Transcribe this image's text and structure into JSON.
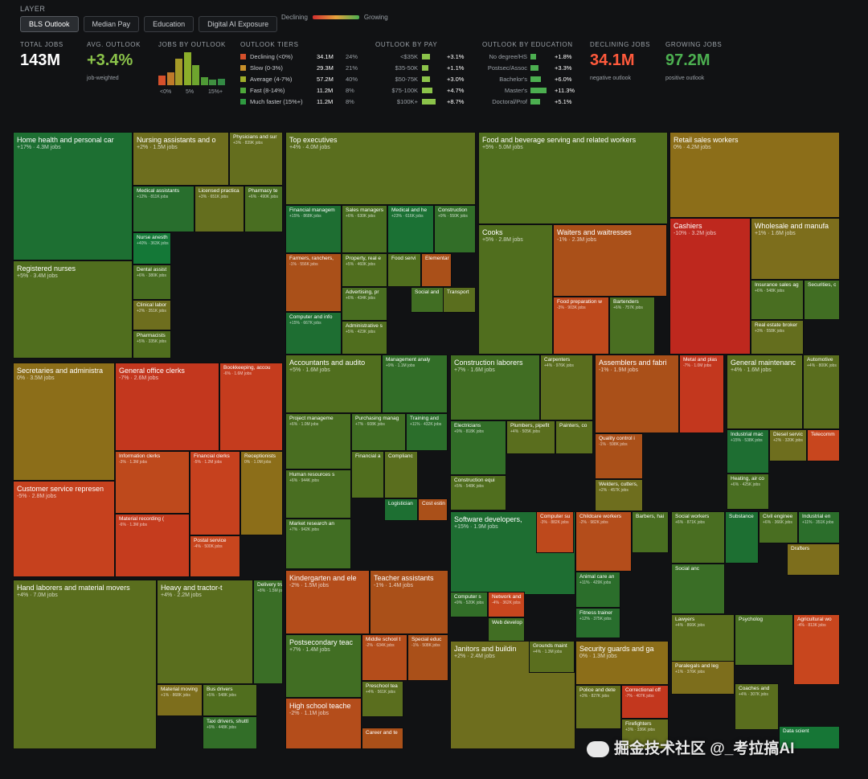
{
  "header": {
    "layer_label": "LAYER",
    "tabs": [
      "BLS Outlook",
      "Median Pay",
      "Education",
      "Digital AI Exposure"
    ],
    "active_tab": "BLS Outlook",
    "legend_declining": "Declining",
    "legend_growing": "Growing"
  },
  "stats": {
    "total_jobs_label": "TOTAL JOBS",
    "total_jobs": "143M",
    "avg_outlook_label": "AVG. OUTLOOK",
    "avg_outlook": "+3.4%",
    "avg_outlook_sub": "job-weighted",
    "jobs_by_outlook_label": "JOBS BY OUTLOOK",
    "histogram": [
      {
        "value": 0.28,
        "color": "#d5502b"
      },
      {
        "value": 0.36,
        "color": "#c07a2a"
      },
      {
        "value": 0.75,
        "color": "#a59a28"
      },
      {
        "value": 0.93,
        "color": "#8bae2a"
      },
      {
        "value": 0.56,
        "color": "#6ea52e"
      },
      {
        "value": 0.22,
        "color": "#4f9a36"
      },
      {
        "value": 0.16,
        "color": "#3f9040"
      },
      {
        "value": 0.18,
        "color": "#338a44"
      }
    ],
    "histogram_ticks": [
      "<0%",
      "5%",
      "15%+"
    ],
    "declining_jobs_label": "DECLINING JOBS",
    "declining_jobs": "34.1M",
    "declining_jobs_sub": "negative outlook",
    "growing_jobs_label": "GROWING JOBS",
    "growing_jobs": "97.2M",
    "growing_jobs_sub": "positive outlook"
  },
  "outlook_tiers": {
    "label": "OUTLOOK TIERS",
    "rows": [
      {
        "name": "Declining (<0%)",
        "jobs": "34.1M",
        "pct": "24%",
        "color": "#d5502b"
      },
      {
        "name": "Slow (0-3%)",
        "jobs": "29.3M",
        "pct": "21%",
        "color": "#c9902a"
      },
      {
        "name": "Average (4-7%)",
        "jobs": "57.2M",
        "pct": "40%",
        "color": "#9fae2a"
      },
      {
        "name": "Fast (8-14%)",
        "jobs": "11.2M",
        "pct": "8%",
        "color": "#4ea83a"
      },
      {
        "name": "Much faster (15%+)",
        "jobs": "11.2M",
        "pct": "8%",
        "color": "#2f9a40"
      }
    ]
  },
  "outlook_by_pay": {
    "label": "OUTLOOK BY PAY",
    "rows": [
      {
        "name": "<$35K",
        "value": "+3.1%",
        "bar": 0.55
      },
      {
        "name": "$35-50K",
        "value": "+1.1%",
        "bar": 0.45
      },
      {
        "name": "$50-75K",
        "value": "+3.0%",
        "bar": 0.55
      },
      {
        "name": "$75-100K",
        "value": "+4.7%",
        "bar": 0.7
      },
      {
        "name": "$100K+",
        "value": "+8.7%",
        "bar": 0.95
      }
    ]
  },
  "outlook_by_education": {
    "label": "OUTLOOK BY EDUCATION",
    "rows": [
      {
        "name": "No degree/HS",
        "value": "+1.8%",
        "bar": 0.35
      },
      {
        "name": "Postsec/Assoc",
        "value": "+3.3%",
        "bar": 0.5
      },
      {
        "name": "Bachelor's",
        "value": "+6.0%",
        "bar": 0.65
      },
      {
        "name": "Master's",
        "value": "+11.3%",
        "bar": 1.0
      },
      {
        "name": "Doctoral/Prof",
        "value": "+5.1%",
        "bar": 0.6
      }
    ]
  },
  "chart_data": {
    "type": "treemap",
    "value_unit": "jobs",
    "color_metric": "BLS projected employment change",
    "labeled_cells": [
      {
        "name": "Home health and personal car",
        "label": "+17% · 4.3M jobs",
        "outlook": 17,
        "jobs": 4.3
      },
      {
        "name": "Registered nurses",
        "label": "+5% · 3.4M jobs",
        "outlook": 5,
        "jobs": 3.4
      },
      {
        "name": "Nursing assistants and o",
        "label": "+2% · 1.5M jobs",
        "outlook": 2,
        "jobs": 1.5
      },
      {
        "name": "Physicians and sur",
        "label": "+3% · 839K jobs",
        "outlook": 3,
        "jobs": 0.839
      },
      {
        "name": "Medical assistants",
        "label": "+12% · 811K jobs",
        "outlook": 12,
        "jobs": 0.811
      },
      {
        "name": "Licensed practica",
        "label": "+3% · 651K jobs",
        "outlook": 3,
        "jobs": 0.651
      },
      {
        "name": "Pharmacy te",
        "label": "+6% · 490K jobs",
        "outlook": 6,
        "jobs": 0.49
      },
      {
        "name": "Nurse anesth",
        "label": "+40% · 363K jobs",
        "outlook": 40,
        "jobs": 0.363
      },
      {
        "name": "Dental assist",
        "label": "+6% · 380K jobs",
        "outlook": 6,
        "jobs": 0.38
      },
      {
        "name": "Clinical labor",
        "label": "+2% · 351K jobs",
        "outlook": 2,
        "jobs": 0.351
      },
      {
        "name": "Pharmacists",
        "label": "+5% · 335K jobs",
        "outlook": 5,
        "jobs": 0.335
      },
      {
        "name": "Top executives",
        "label": "+4% · 4.0M jobs",
        "outlook": 4,
        "jobs": 4.0
      },
      {
        "name": "Financial managem",
        "label": "+15% · 868K jobs",
        "outlook": 15,
        "jobs": 0.868
      },
      {
        "name": "Sales managers",
        "label": "+6% · 630K jobs",
        "outlook": 6,
        "jobs": 0.63
      },
      {
        "name": "Medical and he",
        "label": "+23% · 616K jobs",
        "outlook": 23,
        "jobs": 0.616
      },
      {
        "name": "Construction",
        "label": "+9% · 550K jobs",
        "outlook": 9,
        "jobs": 0.55
      },
      {
        "name": "Farmers, ranchers,",
        "label": "-1% · 556K jobs",
        "outlook": -1,
        "jobs": 0.556
      },
      {
        "name": "Property, real e",
        "label": "+5% · 460K jobs",
        "outlook": 5,
        "jobs": 0.46
      },
      {
        "name": "Food servi",
        "label": "",
        "outlook": 5,
        "jobs": 0
      },
      {
        "name": "Elementar",
        "label": "",
        "outlook": -1,
        "jobs": 0
      },
      {
        "name": "Advertising, pr",
        "label": "+6% · 434K jobs",
        "outlook": 6,
        "jobs": 0.434
      },
      {
        "name": "Social and",
        "label": "",
        "outlook": 7,
        "jobs": 0
      },
      {
        "name": "Transport",
        "label": "",
        "outlook": 4,
        "jobs": 0
      },
      {
        "name": "Computer and info",
        "label": "+15% · 667K jobs",
        "outlook": 15,
        "jobs": 0.667
      },
      {
        "name": "Administrative s",
        "label": "+5% · 423K jobs",
        "outlook": 5,
        "jobs": 0.423
      },
      {
        "name": "Food and beverage serving and related workers",
        "label": "+5% · 5.0M jobs",
        "outlook": 5,
        "jobs": 5.0
      },
      {
        "name": "Cooks",
        "label": "+5% · 2.8M jobs",
        "outlook": 5,
        "jobs": 2.8
      },
      {
        "name": "Waiters and waitresses",
        "label": "-1% · 2.3M jobs",
        "outlook": -1,
        "jobs": 2.3
      },
      {
        "name": "Food preparation w",
        "label": "-3% · 903K jobs",
        "outlook": -3,
        "jobs": 0.903
      },
      {
        "name": "Bartenders",
        "label": "+6% · 757K jobs",
        "outlook": 6,
        "jobs": 0.757
      },
      {
        "name": "Retail sales workers",
        "label": "0% · 4.2M jobs",
        "outlook": 0,
        "jobs": 4.2
      },
      {
        "name": "Cashiers",
        "label": "-10% · 3.2M jobs",
        "outlook": -10,
        "jobs": 3.2
      },
      {
        "name": "Wholesale and manufa",
        "label": "+1% · 1.6M jobs",
        "outlook": 1,
        "jobs": 1.6
      },
      {
        "name": "Insurance sales ag",
        "label": "+6% · 548K jobs",
        "outlook": 6,
        "jobs": 0.548
      },
      {
        "name": "Securities, c",
        "label": "",
        "outlook": 7,
        "jobs": 0
      },
      {
        "name": "Real estate broker",
        "label": "+3% · 558K jobs",
        "outlook": 3,
        "jobs": 0.558
      },
      {
        "name": "Secretaries and administra",
        "label": "0% · 3.5M jobs",
        "outlook": 0,
        "jobs": 3.5
      },
      {
        "name": "General office clerks",
        "label": "-7% · 2.6M jobs",
        "outlook": -7,
        "jobs": 2.6
      },
      {
        "name": "Bookkeeping, accou",
        "label": "-6% · 1.6M jobs",
        "outlook": -6,
        "jobs": 1.6
      },
      {
        "name": "Customer service represen",
        "label": "-5% · 2.8M jobs",
        "outlook": -5,
        "jobs": 2.8
      },
      {
        "name": "Information clerks",
        "label": "-3% · 1.3M jobs",
        "outlook": -3,
        "jobs": 1.3
      },
      {
        "name": "Financial clerks",
        "label": "-5% · 1.2M jobs",
        "outlook": -5,
        "jobs": 1.2
      },
      {
        "name": "Receptionists",
        "label": "0% · 1.0M jobs",
        "outlook": 0,
        "jobs": 1.0
      },
      {
        "name": "Material recording (",
        "label": "-6% · 1.3M jobs",
        "outlook": -6,
        "jobs": 1.3
      },
      {
        "name": "Postal service",
        "label": "-4% · 500K jobs",
        "outlook": -4,
        "jobs": 0.5
      },
      {
        "name": "Hand laborers and material movers",
        "label": "+4% · 7.0M jobs",
        "outlook": 4,
        "jobs": 7.0
      },
      {
        "name": "Heavy and tractor-t",
        "label": "+4% · 2.2M jobs",
        "outlook": 4,
        "jobs": 2.2
      },
      {
        "name": "Delivery truck driv",
        "label": "+8% · 1.5M jobs",
        "outlook": 8,
        "jobs": 1.5
      },
      {
        "name": "Material moving",
        "label": "+1% · 868K jobs",
        "outlook": 1,
        "jobs": 0.868
      },
      {
        "name": "Bus drivers",
        "label": "+5% · 548K jobs",
        "outlook": 5,
        "jobs": 0.548
      },
      {
        "name": "Taxi drivers, shuttl",
        "label": "+9% · 448K jobs",
        "outlook": 9,
        "jobs": 0.448
      },
      {
        "name": "Accountants and audito",
        "label": "+5% · 1.6M jobs",
        "outlook": 5,
        "jobs": 1.6
      },
      {
        "name": "Management analy",
        "label": "+9% · 1.1M jobs",
        "outlook": 9,
        "jobs": 1.1
      },
      {
        "name": "Project manageme",
        "label": "+6% · 1.0M jobs",
        "outlook": 6,
        "jobs": 1.0
      },
      {
        "name": "Purchasing manag",
        "label": "+7% · 608K jobs",
        "outlook": 7,
        "jobs": 0.608
      },
      {
        "name": "Training and",
        "label": "+11% · 432K jobs",
        "outlook": 11,
        "jobs": 0.432
      },
      {
        "name": "Human resources s",
        "label": "+6% · 944K jobs",
        "outlook": 6,
        "jobs": 0.944
      },
      {
        "name": "Financial a",
        "label": "",
        "outlook": 5,
        "jobs": 0
      },
      {
        "name": "Complianc",
        "label": "",
        "outlook": 4,
        "jobs": 0
      },
      {
        "name": "Logistician",
        "label": "",
        "outlook": 17,
        "jobs": 0
      },
      {
        "name": "Cost estin",
        "label": "",
        "outlook": -1,
        "jobs": 0
      },
      {
        "name": "Market research an",
        "label": "+7% · 942K jobs",
        "outlook": 7,
        "jobs": 0.942
      },
      {
        "name": "Construction laborers",
        "label": "+7% · 1.6M jobs",
        "outlook": 7,
        "jobs": 1.6
      },
      {
        "name": "Carpenters",
        "label": "+4% · 976K jobs",
        "outlook": 4,
        "jobs": 0.976
      },
      {
        "name": "Electricians",
        "label": "+9% · 818K jobs",
        "outlook": 9,
        "jobs": 0.818
      },
      {
        "name": "Plumbers, pipefit",
        "label": "+4% · 505K jobs",
        "outlook": 4,
        "jobs": 0.505
      },
      {
        "name": "Painters, co",
        "label": "",
        "outlook": 4,
        "jobs": 0
      },
      {
        "name": "Construction equi",
        "label": "+5% · 548K jobs",
        "outlook": 5,
        "jobs": 0.548
      },
      {
        "name": "Assemblers and fabri",
        "label": "-1% · 1.9M jobs",
        "outlook": -1,
        "jobs": 1.9
      },
      {
        "name": "Metal and plas",
        "label": "-7% · 1.0M jobs",
        "outlook": -7,
        "jobs": 1.0
      },
      {
        "name": "Quality control i",
        "label": "-1% · 598K jobs",
        "outlook": -1,
        "jobs": 0.598
      },
      {
        "name": "Welders, cutters,",
        "label": "+2% · 457K jobs",
        "outlook": 2,
        "jobs": 0.457
      },
      {
        "name": "General maintenanc",
        "label": "+4% · 1.6M jobs",
        "outlook": 4,
        "jobs": 1.6
      },
      {
        "name": "Automotive",
        "label": "+4% · 800K jobs",
        "outlook": 4,
        "jobs": 0.8
      },
      {
        "name": "Industrial mac",
        "label": "+15% · 538K jobs",
        "outlook": 15,
        "jobs": 0.538
      },
      {
        "name": "Diesel servic",
        "label": "+2% · 320K jobs",
        "outlook": 2,
        "jobs": 0.32
      },
      {
        "name": "Telecomm",
        "label": "",
        "outlook": -4,
        "jobs": 0
      },
      {
        "name": "Heating, air co",
        "label": "+6% · 425K jobs",
        "outlook": 6,
        "jobs": 0.425
      },
      {
        "name": "Software developers,",
        "label": "+15% · 1.9M jobs",
        "outlook": 15,
        "jobs": 1.9
      },
      {
        "name": "Computer su",
        "label": "-3% · 882K jobs",
        "outlook": -3,
        "jobs": 0.882
      },
      {
        "name": "Computer s",
        "label": "+9% · 520K jobs",
        "outlook": 9,
        "jobs": 0.52
      },
      {
        "name": "Network and",
        "label": "-4% · 362K jobs",
        "outlook": -4,
        "jobs": 0.362
      },
      {
        "name": "Web develop",
        "label": "",
        "outlook": 7,
        "jobs": 0
      },
      {
        "name": "Childcare workers",
        "label": "-2% · 982K jobs",
        "outlook": -2,
        "jobs": 0.982
      },
      {
        "name": "Barbers, hai",
        "label": "",
        "outlook": 6,
        "jobs": 0
      },
      {
        "name": "Animal care an",
        "label": "+11% · 429K jobs",
        "outlook": 11,
        "jobs": 0.429
      },
      {
        "name": "Fitness trainer",
        "label": "+12% · 375K jobs",
        "outlook": 12,
        "jobs": 0.375
      },
      {
        "name": "Social workers",
        "label": "+6% · 871K jobs",
        "outlook": 6,
        "jobs": 0.871
      },
      {
        "name": "Substance",
        "label": "",
        "outlook": 17,
        "jobs": 0
      },
      {
        "name": "Civil enginee",
        "label": "+6% · 366K jobs",
        "outlook": 6,
        "jobs": 0.366
      },
      {
        "name": "Industrial en",
        "label": "+11% · 351K jobs",
        "outlook": 11,
        "jobs": 0.351
      },
      {
        "name": "Social anc",
        "label": "",
        "outlook": 8,
        "jobs": 0
      },
      {
        "name": "Drafters",
        "label": "",
        "outlook": 1,
        "jobs": 0
      },
      {
        "name": "Kindergarten and ele",
        "label": "-2% · 1.5M jobs",
        "outlook": -2,
        "jobs": 1.5
      },
      {
        "name": "Teacher assistants",
        "label": "-1% · 1.4M jobs",
        "outlook": -1,
        "jobs": 1.4
      },
      {
        "name": "Postsecondary teac",
        "label": "+7% · 1.4M jobs",
        "outlook": 7,
        "jobs": 1.4
      },
      {
        "name": "Middle school t",
        "label": "-2% · 634K jobs",
        "outlook": -2,
        "jobs": 0.634
      },
      {
        "name": "Special educ",
        "label": "-1% · 508K jobs",
        "outlook": -1,
        "jobs": 0.508
      },
      {
        "name": "Preschool tea",
        "label": "+4% · 561K jobs",
        "outlook": 4,
        "jobs": 0.561
      },
      {
        "name": "High school teache",
        "label": "-2% · 1.1M jobs",
        "outlook": -2,
        "jobs": 1.1
      },
      {
        "name": "Career and te",
        "label": "",
        "outlook": -1,
        "jobs": 0
      },
      {
        "name": "Janitors and buildin",
        "label": "+2% · 2.4M jobs",
        "outlook": 2,
        "jobs": 2.4
      },
      {
        "name": "Grounds maint",
        "label": "+4% · 1.3M jobs",
        "outlook": 4,
        "jobs": 1.3
      },
      {
        "name": "Security guards and ga",
        "label": "0% · 1.3M jobs",
        "outlook": 0,
        "jobs": 1.3
      },
      {
        "name": "Police and dete",
        "label": "+3% · 827K jobs",
        "outlook": 3,
        "jobs": 0.827
      },
      {
        "name": "Correctional off",
        "label": "-7% · 407K jobs",
        "outlook": -7,
        "jobs": 0.407
      },
      {
        "name": "Firefighters",
        "label": "+3% · 336K jobs",
        "outlook": 3,
        "jobs": 0.336
      },
      {
        "name": "Lawyers",
        "label": "+4% · 866K jobs",
        "outlook": 4,
        "jobs": 0.866
      },
      {
        "name": "Psycholog",
        "label": "",
        "outlook": 6,
        "jobs": 0
      },
      {
        "name": "Agricultural wo",
        "label": "-4% · 813K jobs",
        "outlook": -4,
        "jobs": 0.813
      },
      {
        "name": "Paralegals and leg",
        "label": "+1% · 376K jobs",
        "outlook": 1,
        "jobs": 0.376
      },
      {
        "name": "Coaches and",
        "label": "+4% · 307K jobs",
        "outlook": 4,
        "jobs": 0.307
      },
      {
        "name": "Data scient",
        "label": "",
        "outlook": 34,
        "jobs": 0
      }
    ]
  },
  "watermark": {
    "text": "掘金技术社区 @_考拉搞AI"
  }
}
